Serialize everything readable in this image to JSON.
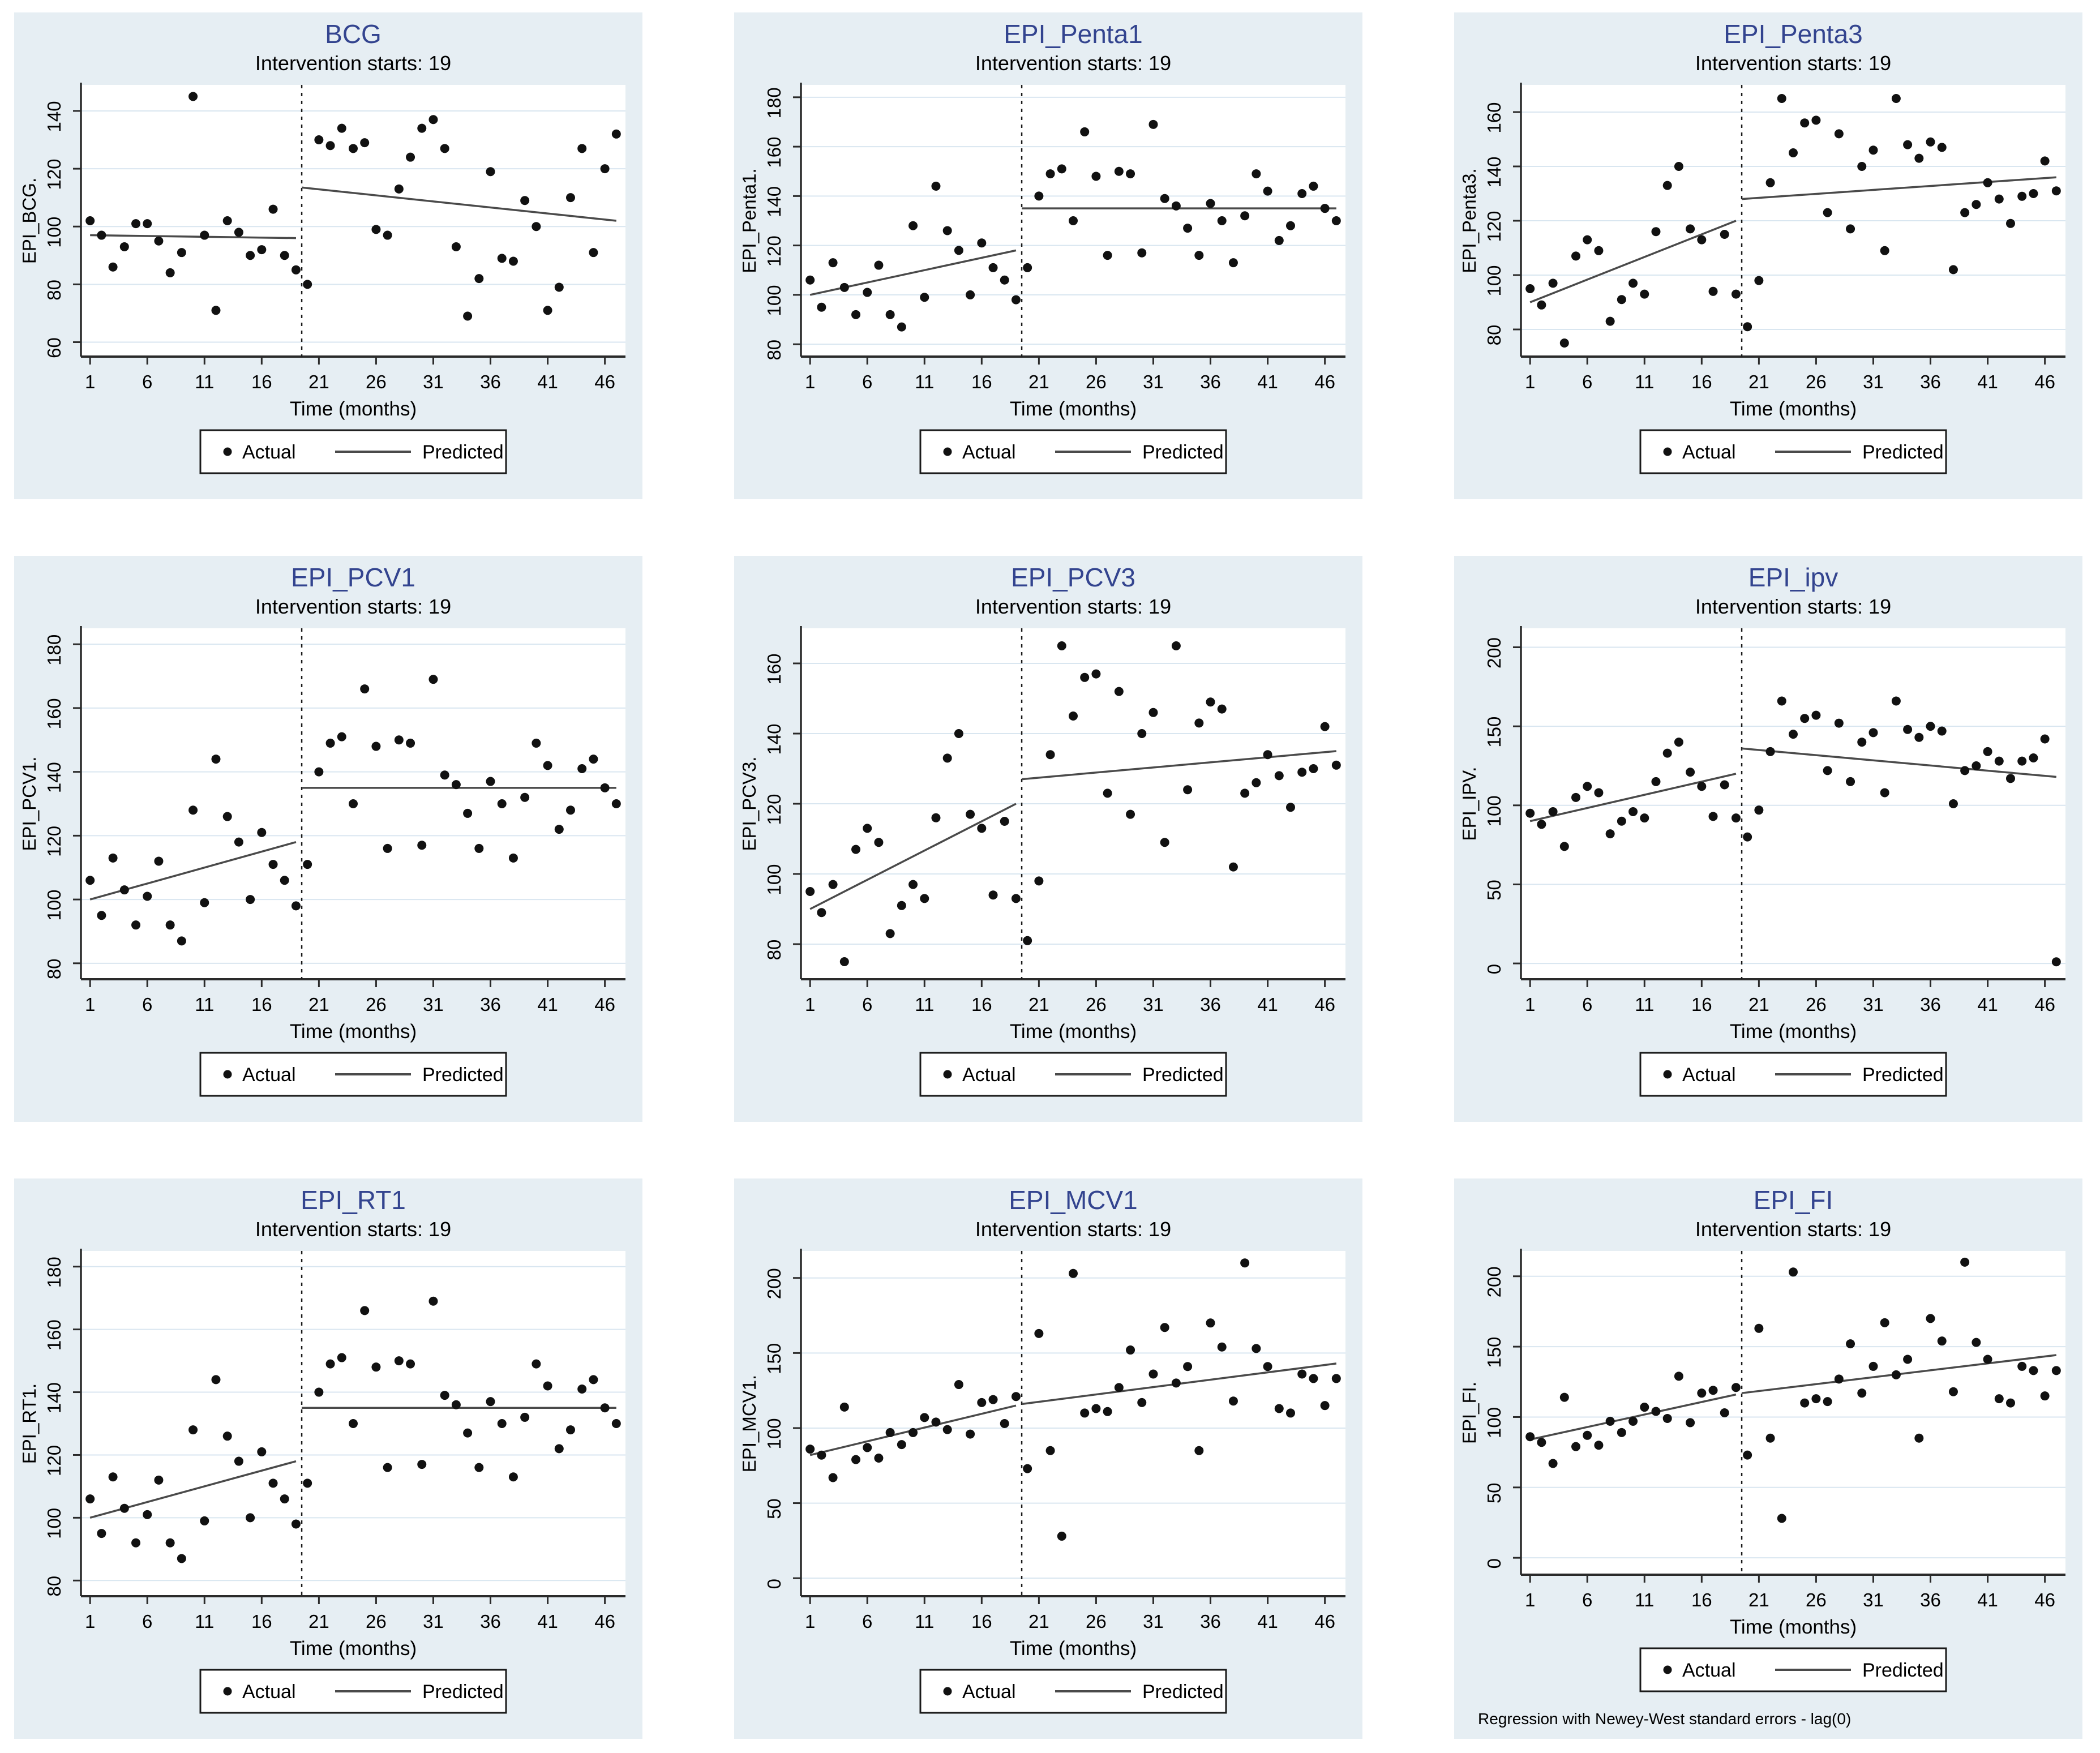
{
  "figure": {
    "background": "#ffffff",
    "panel_background": "#e6eef3",
    "plot_background": "#ffffff",
    "grid_color": "#d9e6f0",
    "axis_color": "#2a2a2a",
    "title_color": "#33448f",
    "text_color": "#000000",
    "point_color": "#111111",
    "line_color": "#4a4a4a",
    "subtitle": "Intervention starts: 19",
    "xlabel": "Time (months)",
    "x_ticks": [
      1,
      6,
      11,
      16,
      21,
      26,
      31,
      36,
      41,
      46
    ],
    "xlim": [
      0.2,
      47.8
    ],
    "intervention_line_x": 19.5,
    "legend": {
      "actual_label": "Actual",
      "predicted_label": "Predicted"
    },
    "footnote": "Regression with Newey-West standard errors - lag(0)"
  },
  "chart_data": [
    {
      "type": "scatter",
      "title": "BCG",
      "subtitle": "Intervention starts: 19",
      "xlabel": "Time (months)",
      "ylabel": "EPI_BCG.",
      "y_ticks": [
        60,
        80,
        100,
        120,
        140
      ],
      "ylim": [
        55,
        149
      ],
      "x_start": 1,
      "actual": [
        102,
        97,
        86,
        93,
        101,
        101,
        95,
        84,
        91,
        145,
        97,
        71,
        102,
        98,
        90,
        92,
        106,
        90,
        85,
        80,
        130,
        128,
        134,
        127,
        129,
        99,
        97,
        113,
        124,
        134,
        137,
        127,
        93,
        69,
        82,
        119,
        89,
        88,
        109,
        100,
        71,
        79,
        110,
        127,
        91,
        120,
        132
      ],
      "predicted": [
        {
          "x": [
            1,
            19
          ],
          "y": [
            97,
            96
          ]
        },
        {
          "x": [
            19.5,
            47
          ],
          "y": [
            113.5,
            102
          ]
        }
      ],
      "has_footnote": false
    },
    {
      "type": "scatter",
      "title": "EPI_Penta1",
      "subtitle": "Intervention starts: 19",
      "xlabel": "Time (months)",
      "ylabel": "EPI_Penta1.",
      "y_ticks": [
        80,
        100,
        120,
        140,
        160,
        180
      ],
      "ylim": [
        75,
        185
      ],
      "x_start": 1,
      "actual": [
        106,
        95,
        113,
        103,
        92,
        101,
        112,
        92,
        87,
        128,
        99,
        144,
        126,
        118,
        100,
        121,
        111,
        106,
        98,
        111,
        140,
        149,
        151,
        130,
        166,
        148,
        116,
        150,
        149,
        117,
        169,
        139,
        136,
        127,
        116,
        137,
        130,
        113,
        132,
        149,
        142,
        122,
        128,
        141,
        144,
        135,
        130
      ],
      "predicted": [
        {
          "x": [
            1,
            19
          ],
          "y": [
            100,
            118
          ]
        },
        {
          "x": [
            19.5,
            47
          ],
          "y": [
            135,
            135
          ]
        }
      ],
      "has_footnote": false
    },
    {
      "type": "scatter",
      "title": "EPI_Penta3",
      "subtitle": "Intervention starts: 19",
      "xlabel": "Time (months)",
      "ylabel": "EPI_Penta3.",
      "y_ticks": [
        80,
        100,
        120,
        140,
        160
      ],
      "ylim": [
        70,
        170
      ],
      "x_start": 1,
      "actual": [
        95,
        89,
        97,
        75,
        107,
        113,
        109,
        83,
        91,
        97,
        93,
        116,
        133,
        140,
        117,
        113,
        94,
        115,
        93,
        81,
        98,
        134,
        165,
        145,
        156,
        157,
        123,
        152,
        117,
        140,
        146,
        109,
        165,
        148,
        143,
        149,
        147,
        102,
        123,
        126,
        134,
        128,
        119,
        129,
        130,
        142,
        131
      ],
      "predicted": [
        {
          "x": [
            1,
            19
          ],
          "y": [
            90,
            120
          ]
        },
        {
          "x": [
            19.5,
            47
          ],
          "y": [
            128,
            136
          ]
        }
      ],
      "has_footnote": false
    },
    {
      "type": "scatter",
      "title": "EPI_PCV1",
      "subtitle": "Intervention starts: 19",
      "xlabel": "Time (months)",
      "ylabel": "EPI_PCV1.",
      "y_ticks": [
        80,
        100,
        120,
        140,
        160,
        180
      ],
      "ylim": [
        75,
        185
      ],
      "x_start": 1,
      "actual": [
        106,
        95,
        113,
        103,
        92,
        101,
        112,
        92,
        87,
        128,
        99,
        144,
        126,
        118,
        100,
        121,
        111,
        106,
        98,
        111,
        140,
        149,
        151,
        130,
        166,
        148,
        116,
        150,
        149,
        117,
        169,
        139,
        136,
        127,
        116,
        137,
        130,
        113,
        132,
        149,
        142,
        122,
        128,
        141,
        144,
        135,
        130
      ],
      "predicted": [
        {
          "x": [
            1,
            19
          ],
          "y": [
            100,
            118
          ]
        },
        {
          "x": [
            19.5,
            47
          ],
          "y": [
            135,
            135
          ]
        }
      ],
      "has_footnote": false
    },
    {
      "type": "scatter",
      "title": "EPI_PCV3",
      "subtitle": "Intervention starts: 19",
      "xlabel": "Time (months)",
      "ylabel": "EPI_PCV3.",
      "y_ticks": [
        80,
        100,
        120,
        140,
        160
      ],
      "ylim": [
        70,
        170
      ],
      "x_start": 1,
      "actual": [
        95,
        89,
        97,
        75,
        107,
        113,
        109,
        83,
        91,
        97,
        93,
        116,
        133,
        140,
        117,
        113,
        94,
        115,
        93,
        81,
        98,
        134,
        165,
        145,
        156,
        157,
        123,
        152,
        117,
        140,
        146,
        109,
        165,
        124,
        143,
        149,
        147,
        102,
        123,
        126,
        134,
        128,
        119,
        129,
        130,
        142,
        131
      ],
      "predicted": [
        {
          "x": [
            1,
            19
          ],
          "y": [
            90,
            120
          ]
        },
        {
          "x": [
            19.5,
            47
          ],
          "y": [
            127,
            135
          ]
        }
      ],
      "has_footnote": false
    },
    {
      "type": "scatter",
      "title": "EPI_ipv",
      "subtitle": "Intervention starts: 19",
      "xlabel": "Time (months)",
      "ylabel": "EPI_IPV.",
      "y_ticks": [
        0,
        50,
        100,
        150,
        200
      ],
      "ylim": [
        -10,
        212
      ],
      "x_start": 1,
      "actual": [
        95,
        88,
        96,
        74,
        105,
        112,
        108,
        82,
        90,
        96,
        92,
        115,
        133,
        140,
        121,
        112,
        93,
        113,
        92,
        80,
        97,
        134,
        166,
        145,
        155,
        157,
        122,
        152,
        115,
        140,
        146,
        108,
        166,
        148,
        143,
        150,
        147,
        101,
        122,
        125,
        134,
        128,
        117,
        128,
        130,
        142,
        1
      ],
      "predicted": [
        {
          "x": [
            1,
            19
          ],
          "y": [
            90,
            120
          ]
        },
        {
          "x": [
            19.5,
            47
          ],
          "y": [
            136,
            118
          ]
        }
      ],
      "has_footnote": false
    },
    {
      "type": "scatter",
      "title": "EPI_RT1",
      "subtitle": "Intervention starts: 19",
      "xlabel": "Time (months)",
      "ylabel": "EPI_RT1.",
      "y_ticks": [
        80,
        100,
        120,
        140,
        160,
        180
      ],
      "ylim": [
        75,
        185
      ],
      "x_start": 1,
      "actual": [
        106,
        95,
        113,
        103,
        92,
        101,
        112,
        92,
        87,
        128,
        99,
        144,
        126,
        118,
        100,
        121,
        111,
        106,
        98,
        111,
        140,
        149,
        151,
        130,
        166,
        148,
        116,
        150,
        149,
        117,
        169,
        139,
        136,
        127,
        116,
        137,
        130,
        113,
        132,
        149,
        142,
        122,
        128,
        141,
        144,
        135,
        130
      ],
      "predicted": [
        {
          "x": [
            1,
            19
          ],
          "y": [
            100,
            118
          ]
        },
        {
          "x": [
            19.5,
            47
          ],
          "y": [
            135,
            135
          ]
        }
      ],
      "has_footnote": false
    },
    {
      "type": "scatter",
      "title": "EPI_MCV1",
      "subtitle": "Intervention starts: 19",
      "xlabel": "Time (months)",
      "ylabel": "EPI_MCV1.",
      "y_ticks": [
        0,
        50,
        100,
        150,
        200
      ],
      "ylim": [
        -12,
        218
      ],
      "x_start": 1,
      "actual": [
        86,
        82,
        67,
        114,
        79,
        87,
        80,
        97,
        89,
        97,
        107,
        104,
        99,
        129,
        96,
        117,
        119,
        103,
        121,
        73,
        163,
        85,
        28,
        203,
        110,
        113,
        111,
        127,
        152,
        117,
        136,
        167,
        130,
        141,
        85,
        170,
        154,
        118,
        210,
        153,
        141,
        113,
        110,
        136,
        133,
        115,
        133
      ],
      "predicted": [
        {
          "x": [
            1,
            19
          ],
          "y": [
            82,
            115
          ]
        },
        {
          "x": [
            19.5,
            47
          ],
          "y": [
            116,
            143
          ]
        }
      ],
      "has_footnote": false
    },
    {
      "type": "scatter",
      "title": "EPI_FI",
      "subtitle": "Intervention starts: 19",
      "xlabel": "Time (months)",
      "ylabel": "EPI_FI.",
      "y_ticks": [
        0,
        50,
        100,
        150,
        200
      ],
      "ylim": [
        -12,
        218
      ],
      "x_start": 1,
      "actual": [
        86,
        82,
        67,
        114,
        79,
        87,
        80,
        97,
        89,
        97,
        107,
        104,
        99,
        129,
        96,
        117,
        119,
        103,
        121,
        73,
        163,
        85,
        28,
        203,
        110,
        113,
        111,
        127,
        152,
        117,
        136,
        167,
        130,
        141,
        85,
        170,
        154,
        118,
        210,
        153,
        141,
        113,
        110,
        136,
        133,
        115,
        133
      ],
      "predicted": [
        {
          "x": [
            1,
            19
          ],
          "y": [
            84,
            116
          ]
        },
        {
          "x": [
            19.5,
            47
          ],
          "y": [
            117,
            144
          ]
        }
      ],
      "has_footnote": true
    }
  ]
}
